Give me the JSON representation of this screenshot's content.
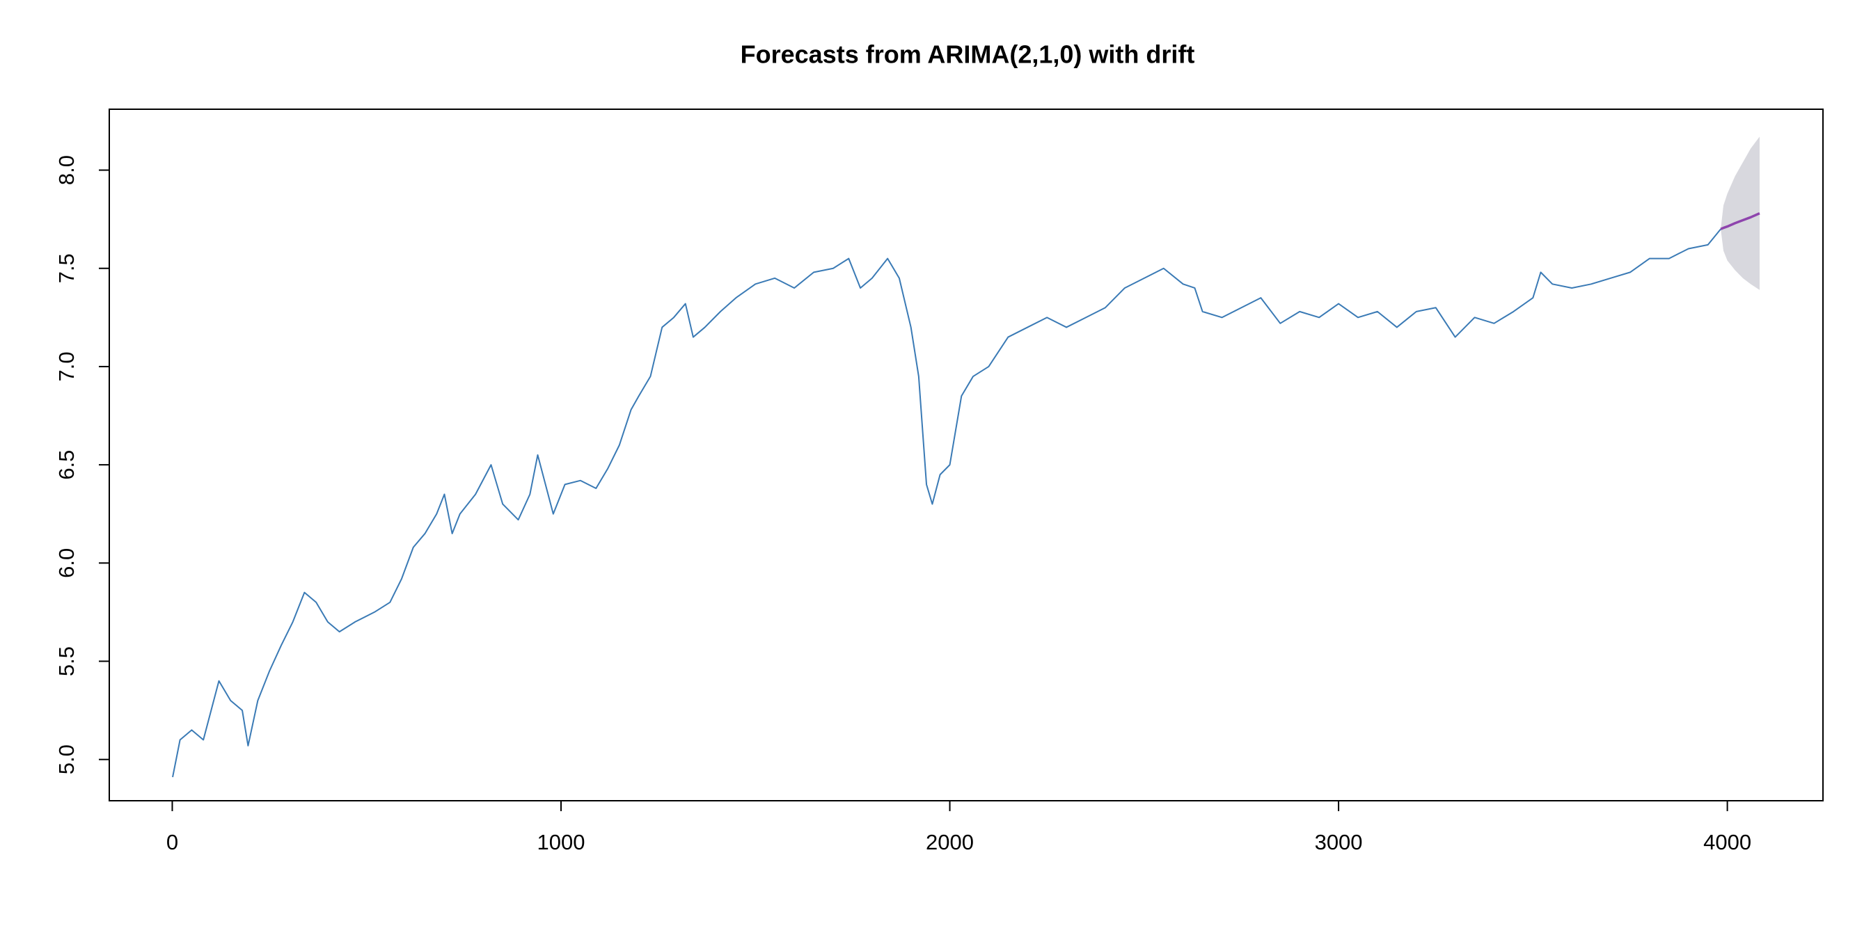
{
  "chart_data": {
    "type": "line",
    "title": "Forecasts from ARIMA(2,1,0) with drift",
    "xlim": [
      -162,
      4246
    ],
    "ylim": [
      4.79,
      8.31
    ],
    "xticks": [
      0,
      1000,
      2000,
      3000,
      4000
    ],
    "yticks": [
      {
        "value": 5,
        "label": "5.0"
      },
      {
        "value": 5.5,
        "label": "5.5"
      },
      {
        "value": 6,
        "label": "6.0"
      },
      {
        "value": 6.5,
        "label": "6.5"
      },
      {
        "value": 7,
        "label": "7.0"
      },
      {
        "value": 7.5,
        "label": "7.5"
      },
      {
        "value": 8,
        "label": "8.0"
      }
    ],
    "series": [
      {
        "color": "#3a7ab5",
        "x": [
          1,
          20,
          50,
          80,
          100,
          120,
          150,
          180,
          195,
          220,
          250,
          280,
          310,
          340,
          370,
          400,
          430,
          470,
          520,
          560,
          590,
          620,
          650,
          680,
          700,
          720,
          740,
          780,
          820,
          850,
          890,
          920,
          940,
          960,
          980,
          1010,
          1050,
          1090,
          1120,
          1150,
          1180,
          1200,
          1230,
          1260,
          1290,
          1320,
          1340,
          1370,
          1410,
          1450,
          1500,
          1550,
          1600,
          1650,
          1700,
          1740,
          1770,
          1800,
          1840,
          1870,
          1900,
          1920,
          1940,
          1955,
          1975,
          2000,
          2030,
          2060,
          2100,
          2150,
          2200,
          2250,
          2300,
          2350,
          2400,
          2450,
          2500,
          2550,
          2600,
          2630,
          2650,
          2700,
          2750,
          2800,
          2850,
          2900,
          2950,
          3000,
          3050,
          3100,
          3150,
          3200,
          3250,
          3300,
          3350,
          3400,
          3450,
          3500,
          3520,
          3550,
          3600,
          3650,
          3700,
          3750,
          3800,
          3850,
          3900,
          3950,
          3983
        ],
        "values": [
          4.91,
          5.1,
          5.15,
          5.1,
          5.25,
          5.4,
          5.3,
          5.25,
          5.07,
          5.3,
          5.45,
          5.58,
          5.7,
          5.85,
          5.8,
          5.7,
          5.65,
          5.7,
          5.75,
          5.8,
          5.92,
          6.08,
          6.15,
          6.25,
          6.35,
          6.15,
          6.25,
          6.35,
          6.5,
          6.3,
          6.22,
          6.35,
          6.55,
          6.4,
          6.25,
          6.4,
          6.42,
          6.38,
          6.48,
          6.6,
          6.78,
          6.85,
          6.95,
          7.2,
          7.25,
          7.32,
          7.15,
          7.2,
          7.28,
          7.35,
          7.42,
          7.45,
          7.4,
          7.48,
          7.5,
          7.55,
          7.4,
          7.45,
          7.55,
          7.45,
          7.2,
          6.95,
          6.4,
          6.3,
          6.45,
          6.5,
          6.85,
          6.95,
          7.0,
          7.15,
          7.2,
          7.25,
          7.2,
          7.25,
          7.3,
          7.4,
          7.45,
          7.5,
          7.42,
          7.4,
          7.28,
          7.25,
          7.3,
          7.35,
          7.22,
          7.28,
          7.25,
          7.32,
          7.25,
          7.28,
          7.2,
          7.28,
          7.3,
          7.15,
          7.25,
          7.22,
          7.28,
          7.35,
          7.48,
          7.42,
          7.4,
          7.42,
          7.45,
          7.48,
          7.55,
          7.55,
          7.6,
          7.62,
          7.7
        ]
      },
      {
        "color": "#8e44ad",
        "band_color": "#d8d8de",
        "x": [
          3983,
          3990,
          4000,
          4020,
          4040,
          4060,
          4083
        ],
        "values": [
          7.7,
          7.706,
          7.713,
          7.73,
          7.745,
          7.76,
          7.78
        ],
        "lower": [
          7.7,
          7.59,
          7.54,
          7.49,
          7.45,
          7.42,
          7.39
        ],
        "upper": [
          7.7,
          7.82,
          7.88,
          7.97,
          8.04,
          8.11,
          8.17
        ]
      }
    ]
  }
}
